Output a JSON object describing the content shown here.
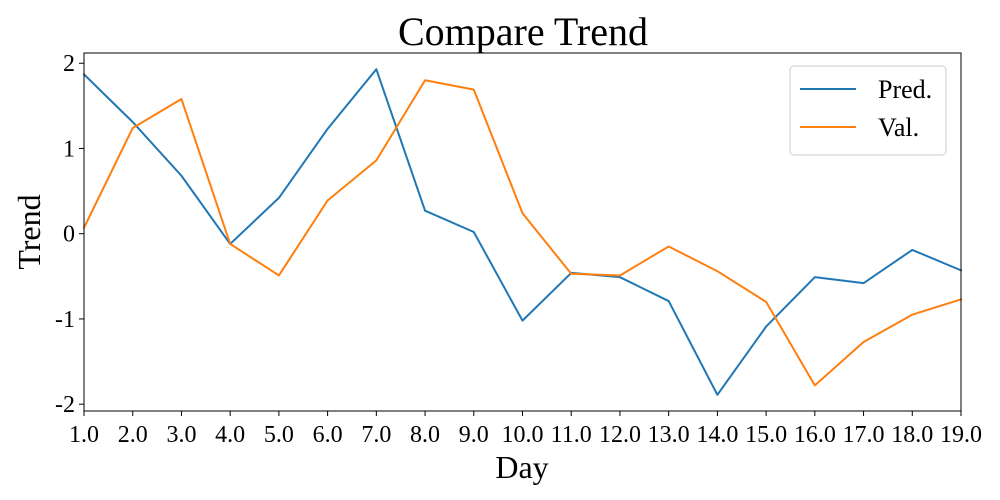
{
  "chart_data": {
    "type": "line",
    "title": "Compare Trend",
    "xlabel": "Day",
    "ylabel": "Trend",
    "x": [
      1.0,
      2.0,
      3.0,
      4.0,
      5.0,
      6.0,
      7.0,
      8.0,
      9.0,
      10.0,
      11.0,
      12.0,
      13.0,
      14.0,
      15.0,
      16.0,
      17.0,
      18.0,
      19.0
    ],
    "x_tick_labels": [
      "1.0",
      "2.0",
      "3.0",
      "4.0",
      "5.0",
      "6.0",
      "7.0",
      "8.0",
      "9.0",
      "10.0",
      "11.0",
      "12.0",
      "13.0",
      "14.0",
      "15.0",
      "16.0",
      "17.0",
      "18.0",
      "19.0"
    ],
    "y_ticks": [
      2,
      1,
      0,
      -1,
      -2
    ],
    "y_tick_labels": [
      "2",
      "1",
      "0",
      "-1",
      "-2"
    ],
    "xlim": [
      1.0,
      19.0
    ],
    "ylim": [
      -2.08,
      2.12
    ],
    "grid": false,
    "legend_position": "top-right",
    "series": [
      {
        "name": "Pred.",
        "color": "#1f77b4",
        "values": [
          1.87,
          1.31,
          0.68,
          -0.12,
          0.42,
          1.23,
          1.93,
          0.27,
          0.02,
          -1.02,
          -0.46,
          -0.51,
          -0.79,
          -1.89,
          -1.09,
          -0.51,
          -0.58,
          -0.19,
          -0.43
        ]
      },
      {
        "name": "Val.",
        "color": "#ff7f0e",
        "values": [
          0.07,
          1.24,
          1.58,
          -0.12,
          -0.49,
          0.39,
          0.86,
          1.8,
          1.69,
          0.24,
          -0.47,
          -0.49,
          -0.15,
          -0.44,
          -0.8,
          -1.78,
          -1.27,
          -0.95,
          -0.77
        ]
      }
    ]
  }
}
